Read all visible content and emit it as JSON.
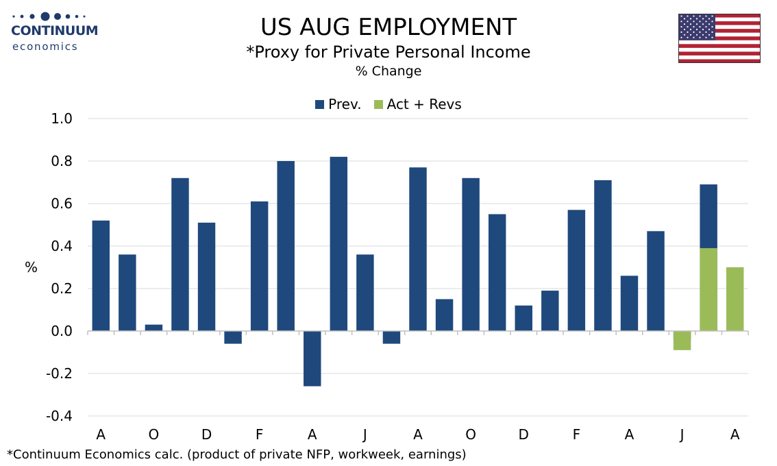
{
  "logo": {
    "name": "CONTINUUM",
    "sub": "economics"
  },
  "header": {
    "title": "US AUG EMPLOYMENT",
    "subtitle": "*Proxy for Private Personal Income",
    "subsubtitle": "% Change"
  },
  "footnote": "*Continuum Economics calc. (product of private NFP, workweek, earnings)",
  "colors": {
    "prev": "#1f497d",
    "act": "#9bbb59",
    "grid": "#d9d9d9",
    "logo": "#1f3a6b"
  },
  "flag": {
    "icon": "us-flag-icon"
  },
  "chart_data": {
    "type": "bar",
    "ylabel": "%",
    "ylim": [
      -0.4,
      1.0
    ],
    "yticks": [
      "1.0",
      "0.8",
      "0.6",
      "0.4",
      "0.2",
      "0.0",
      "-0.2",
      "-0.4"
    ],
    "ytick_values": [
      1.0,
      0.8,
      0.6,
      0.4,
      0.2,
      0.0,
      -0.2,
      -0.4
    ],
    "xtick_labels": [
      "A",
      "O",
      "D",
      "F",
      "A",
      "J",
      "A",
      "O",
      "D",
      "F",
      "A",
      "J",
      "A"
    ],
    "grid": true,
    "legend_position": "top-center",
    "series": [
      {
        "name": "Prev.",
        "values": [
          0.52,
          0.36,
          0.03,
          0.72,
          0.51,
          -0.06,
          0.61,
          0.8,
          -0.26,
          0.82,
          0.36,
          -0.06,
          0.77,
          0.15,
          0.72,
          0.55,
          0.12,
          0.19,
          0.57,
          0.71,
          0.26,
          0.47,
          -0.04,
          0.69,
          null
        ]
      },
      {
        "name": "Act + Revs",
        "values": [
          null,
          null,
          null,
          null,
          null,
          null,
          null,
          null,
          null,
          null,
          null,
          null,
          null,
          null,
          null,
          null,
          null,
          null,
          null,
          null,
          null,
          null,
          -0.09,
          0.39,
          0.3
        ]
      }
    ]
  }
}
